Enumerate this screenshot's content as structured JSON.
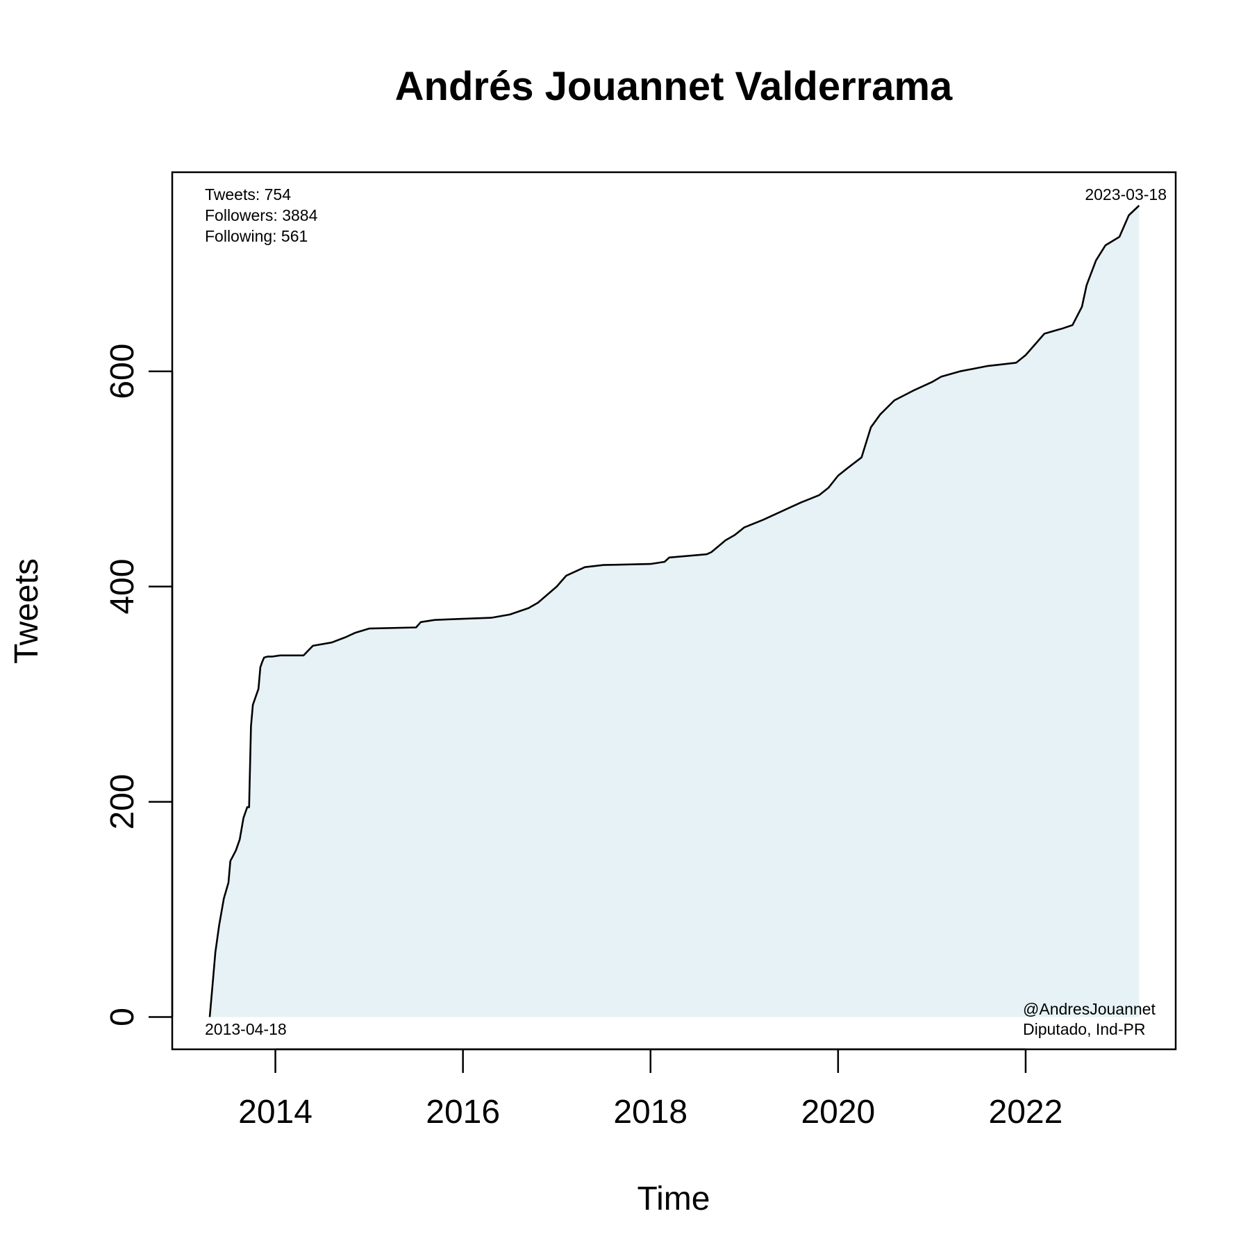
{
  "chart_data": {
    "type": "area",
    "title": "Andrés Jouannet Valderrama",
    "xlabel": "Time",
    "ylabel": "Tweets",
    "x_ticks": [
      2014,
      2016,
      2018,
      2020,
      2022
    ],
    "y_ticks": [
      0,
      200,
      400,
      600
    ],
    "xlim": [
      2012.9,
      2023.6
    ],
    "ylim": [
      -30,
      785
    ],
    "grid": false,
    "line_color": "#000000",
    "fill_color": "#e6f2f6",
    "stats": [
      "Tweets: 754",
      "Followers: 3884",
      "Following: 561"
    ],
    "start_label": "2013-04-18",
    "end_label": "2023-03-18",
    "handle": "@AndresJouannet",
    "description": "Diputado, Ind-PR",
    "series": [
      {
        "x": [
          2013.3,
          2013.33,
          2013.36,
          2013.4,
          2013.45,
          2013.5,
          2013.52,
          2013.55,
          2013.58,
          2013.62,
          2013.66,
          2013.7,
          2013.72,
          2013.74,
          2013.76,
          2013.8,
          2013.82,
          2013.84,
          2013.86,
          2013.88,
          2013.92,
          2013.95,
          2013.97,
          2014.05,
          2014.3,
          2014.4,
          2014.6,
          2014.75,
          2014.85,
          2015.0,
          2015.5,
          2015.55,
          2015.7,
          2016.0,
          2016.3,
          2016.5,
          2016.7,
          2016.8,
          2017.0,
          2017.1,
          2017.3,
          2017.5,
          2018.0,
          2018.15,
          2018.2,
          2018.6,
          2018.65,
          2018.8,
          2018.9,
          2019.0,
          2019.2,
          2019.4,
          2019.6,
          2019.8,
          2019.9,
          2020.0,
          2020.1,
          2020.25,
          2020.35,
          2020.45,
          2020.6,
          2020.8,
          2021.0,
          2021.1,
          2021.3,
          2021.6,
          2021.7,
          2021.9,
          2022.0,
          2022.1,
          2022.2,
          2022.4,
          2022.5,
          2022.6,
          2022.65,
          2022.75,
          2022.85,
          2023.0,
          2023.1,
          2023.21
        ],
        "y": [
          0,
          30,
          60,
          85,
          110,
          125,
          145,
          150,
          155,
          165,
          185,
          195,
          195,
          270,
          290,
          300,
          305,
          325,
          330,
          334,
          335,
          335,
          335,
          336,
          336,
          345,
          348,
          353,
          357,
          361,
          362,
          367,
          369,
          370,
          371,
          374,
          380,
          385,
          400,
          410,
          418,
          420,
          421,
          423,
          427,
          430,
          432,
          443,
          448,
          455,
          462,
          470,
          478,
          485,
          492,
          503,
          510,
          520,
          548,
          560,
          573,
          582,
          590,
          595,
          600,
          605,
          606,
          608,
          615,
          625,
          635,
          640,
          643,
          660,
          680,
          703,
          717,
          725,
          745,
          754
        ]
      }
    ]
  }
}
